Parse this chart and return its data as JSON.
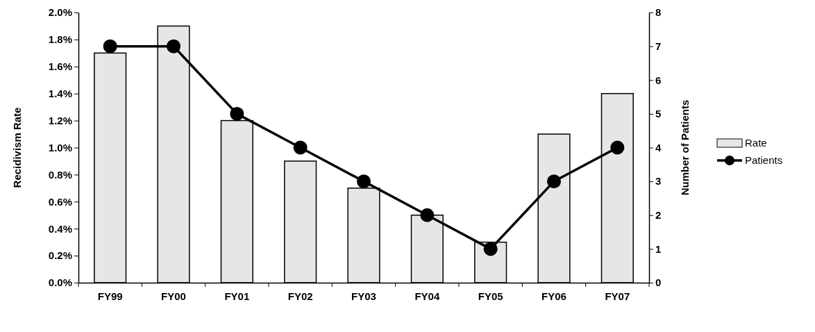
{
  "chart_data": {
    "type": "bar",
    "ylabel": "Recidivism Rate",
    "y2label": "Number of Patients",
    "categories": [
      "FY99",
      "FY00",
      "FY01",
      "FY02",
      "FY03",
      "FY04",
      "FY05",
      "FY06",
      "FY07"
    ],
    "series": [
      {
        "name": "Rate",
        "color": "#e6e6e6",
        "values": [
          1.7,
          1.9,
          1.2,
          0.9,
          0.7,
          0.5,
          0.3,
          1.1,
          1.4
        ]
      },
      {
        "name": "Patients",
        "type": "line",
        "axis": "y2",
        "color": "#000000",
        "marker": "circle",
        "values": [
          7,
          7,
          5,
          4,
          3,
          2,
          1,
          3,
          4
        ]
      }
    ],
    "ylim": [
      0,
      2.0
    ],
    "yticks": [
      {
        "value": 0,
        "label": "0.0%"
      },
      {
        "value": 0.2,
        "label": "0.2%"
      },
      {
        "value": 0.4,
        "label": "0.4%"
      },
      {
        "value": 0.6,
        "label": "0.6%"
      },
      {
        "value": 0.8,
        "label": "0.8%"
      },
      {
        "value": 1.0,
        "label": "1.0%"
      },
      {
        "value": 1.2,
        "label": "1.2%"
      },
      {
        "value": 1.4,
        "label": "1.4%"
      },
      {
        "value": 1.6,
        "label": "1.6%"
      },
      {
        "value": 1.8,
        "label": "1.8%"
      },
      {
        "value": 2.0,
        "label": "2.0%"
      }
    ],
    "y2lim": [
      0,
      8
    ],
    "y2ticks": [
      0,
      1,
      2,
      3,
      4,
      5,
      6,
      7,
      8
    ],
    "legend": "right",
    "grid": false
  }
}
